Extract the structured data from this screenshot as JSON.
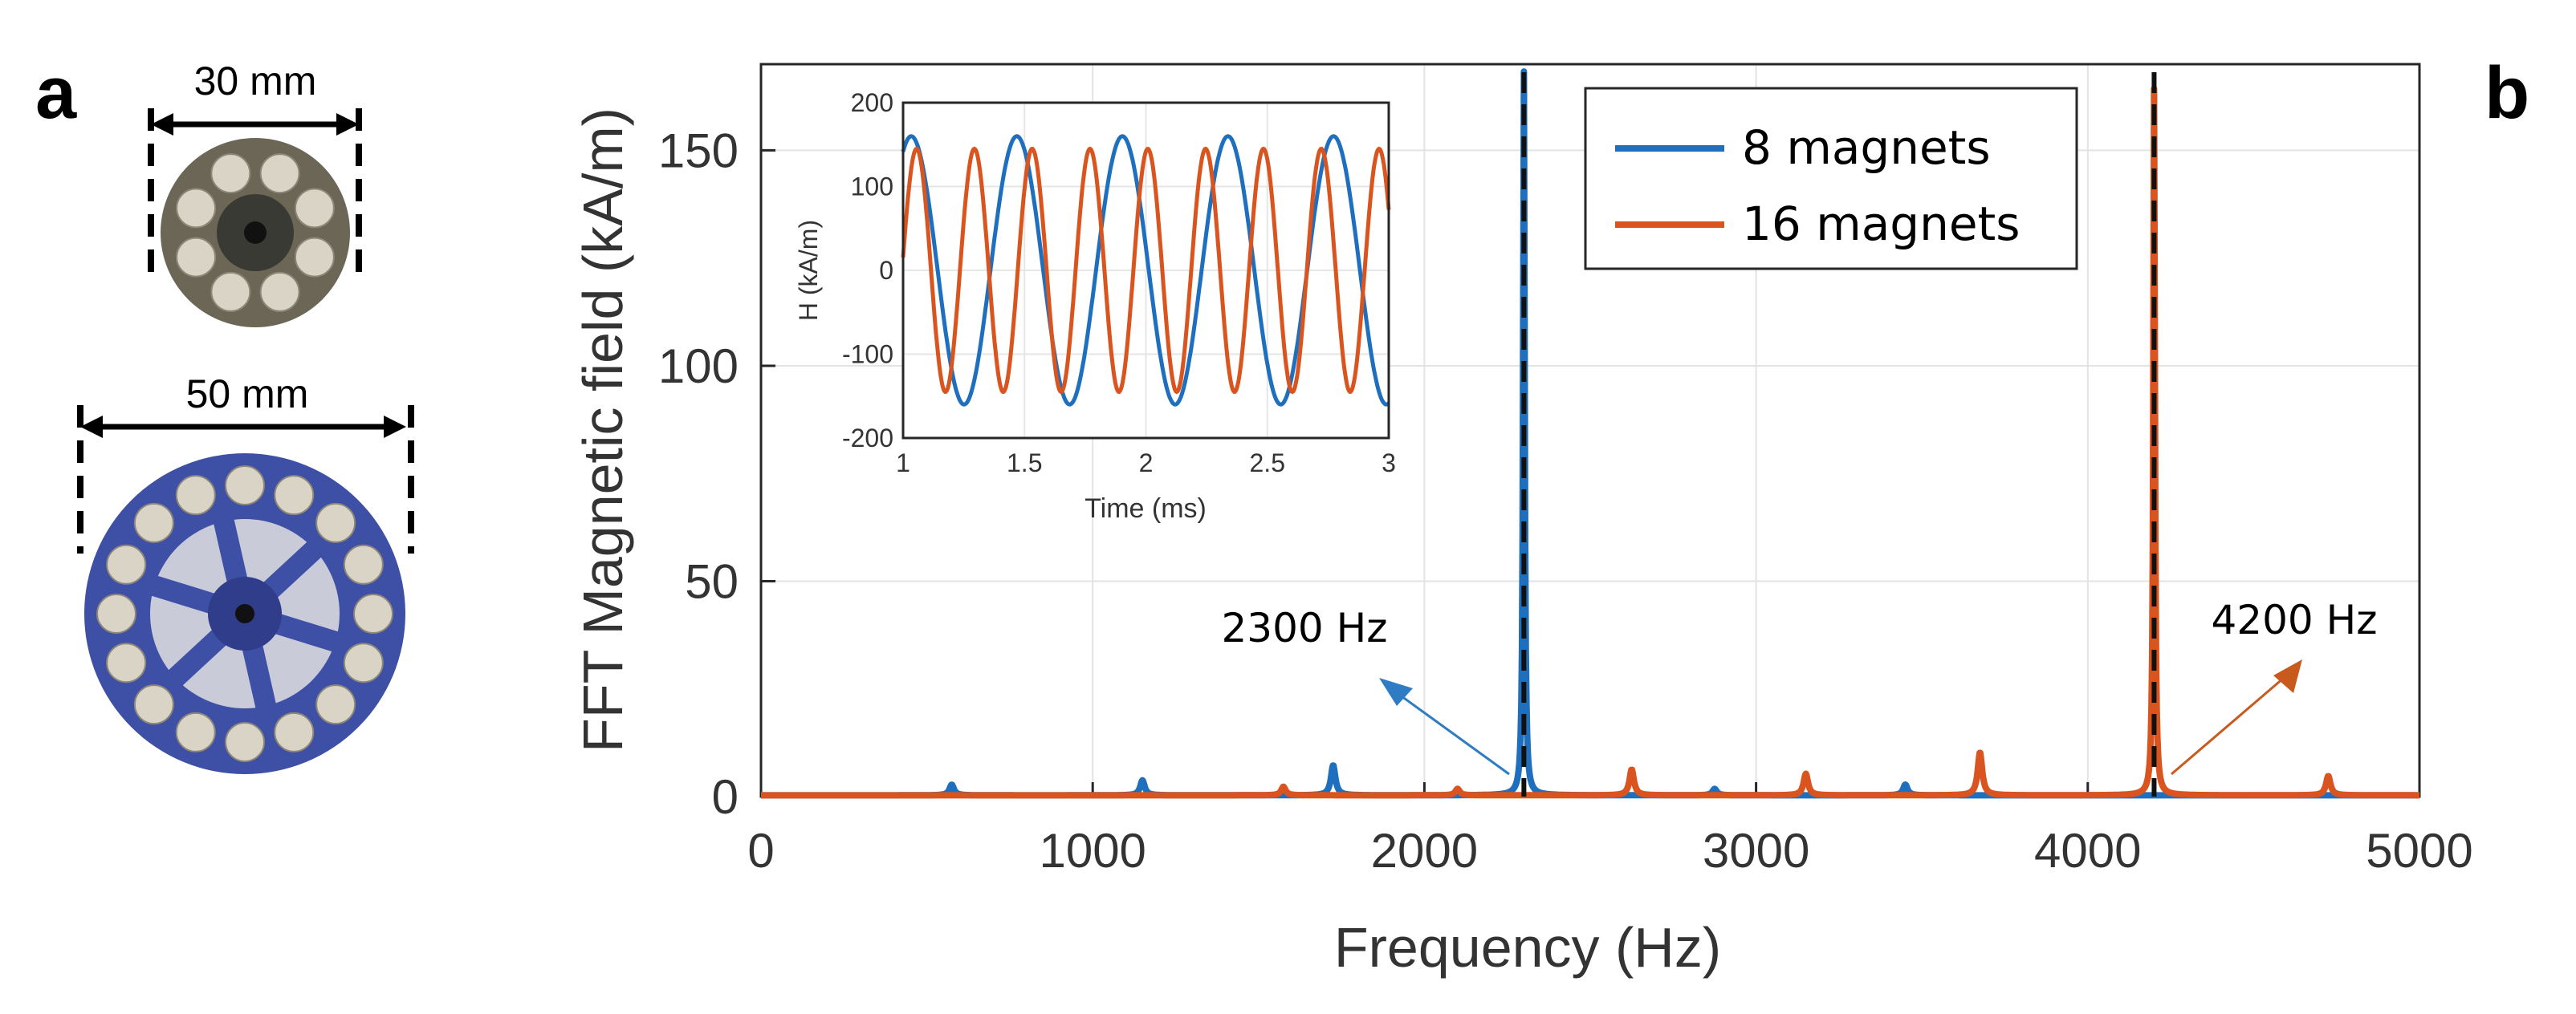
{
  "panel_labels": {
    "a": "a",
    "b": "b"
  },
  "photos": {
    "small_disc": {
      "dimension_label": "30 mm",
      "magnet_count": 8
    },
    "large_disc": {
      "dimension_label": "50 mm",
      "magnet_count": 16
    }
  },
  "colors": {
    "series_8": "#1f6fbf",
    "series_16": "#d9541e",
    "small_disc_body": "#6b6656",
    "large_disc_body": "#3e4fa6",
    "magnet": "#d9d4c5",
    "arrow_blue": "#2e7cc4",
    "arrow_orange": "#c85a1e"
  },
  "chart_data": [
    {
      "id": "main",
      "type": "line",
      "xlabel": "Frequency (Hz)",
      "ylabel": "FFT Magnetic field (kA/m)",
      "xlim": [
        0,
        5000
      ],
      "ylim": [
        0,
        170
      ],
      "xticks": [
        0,
        1000,
        2000,
        3000,
        4000,
        5000
      ],
      "yticks": [
        0,
        50,
        100,
        150
      ],
      "grid": true,
      "legend_position": "top-right",
      "series": [
        {
          "name": "8 magnets",
          "color": "#1f6fbf",
          "main_peak": {
            "x": 2300,
            "y": 168
          },
          "small_peaks": [
            {
              "x": 575,
              "y": 2.5
            },
            {
              "x": 1150,
              "y": 3.5
            },
            {
              "x": 1725,
              "y": 7
            },
            {
              "x": 2875,
              "y": 1.5
            },
            {
              "x": 3450,
              "y": 2.5
            }
          ]
        },
        {
          "name": "16 magnets",
          "color": "#d9541e",
          "main_peak": {
            "x": 4200,
            "y": 164
          },
          "small_peaks": [
            {
              "x": 1575,
              "y": 2
            },
            {
              "x": 2100,
              "y": 1.5
            },
            {
              "x": 2625,
              "y": 6
            },
            {
              "x": 3150,
              "y": 5
            },
            {
              "x": 3675,
              "y": 10
            },
            {
              "x": 4725,
              "y": 4.5
            }
          ]
        }
      ],
      "reference_lines": [
        2300,
        4200
      ],
      "annotations": [
        {
          "text": "2300 Hz",
          "points_to_x": 2300,
          "color": "#2e7cc4"
        },
        {
          "text": "4200 Hz",
          "points_to_x": 4200,
          "color": "#c85a1e"
        }
      ]
    },
    {
      "id": "inset",
      "type": "line",
      "xlabel": "Time (ms)",
      "ylabel": "H (kA/m)",
      "xlim": [
        1,
        3
      ],
      "ylim": [
        -200,
        200
      ],
      "xticks": [
        1,
        1.5,
        2,
        2.5,
        3
      ],
      "xtick_labels": [
        "1",
        "1.5",
        "2",
        "2.5",
        "3"
      ],
      "yticks": [
        -200,
        -100,
        0,
        100,
        200
      ],
      "grid": true,
      "series": [
        {
          "name": "8 magnets",
          "color": "#1f6fbf",
          "frequency_hz": 2300,
          "amplitude": 160,
          "phase_rad": -0.8
        },
        {
          "name": "16 magnets",
          "color": "#d9541e",
          "frequency_hz": 4200,
          "amplitude": 145,
          "phase_rad": -1.15
        }
      ]
    }
  ]
}
